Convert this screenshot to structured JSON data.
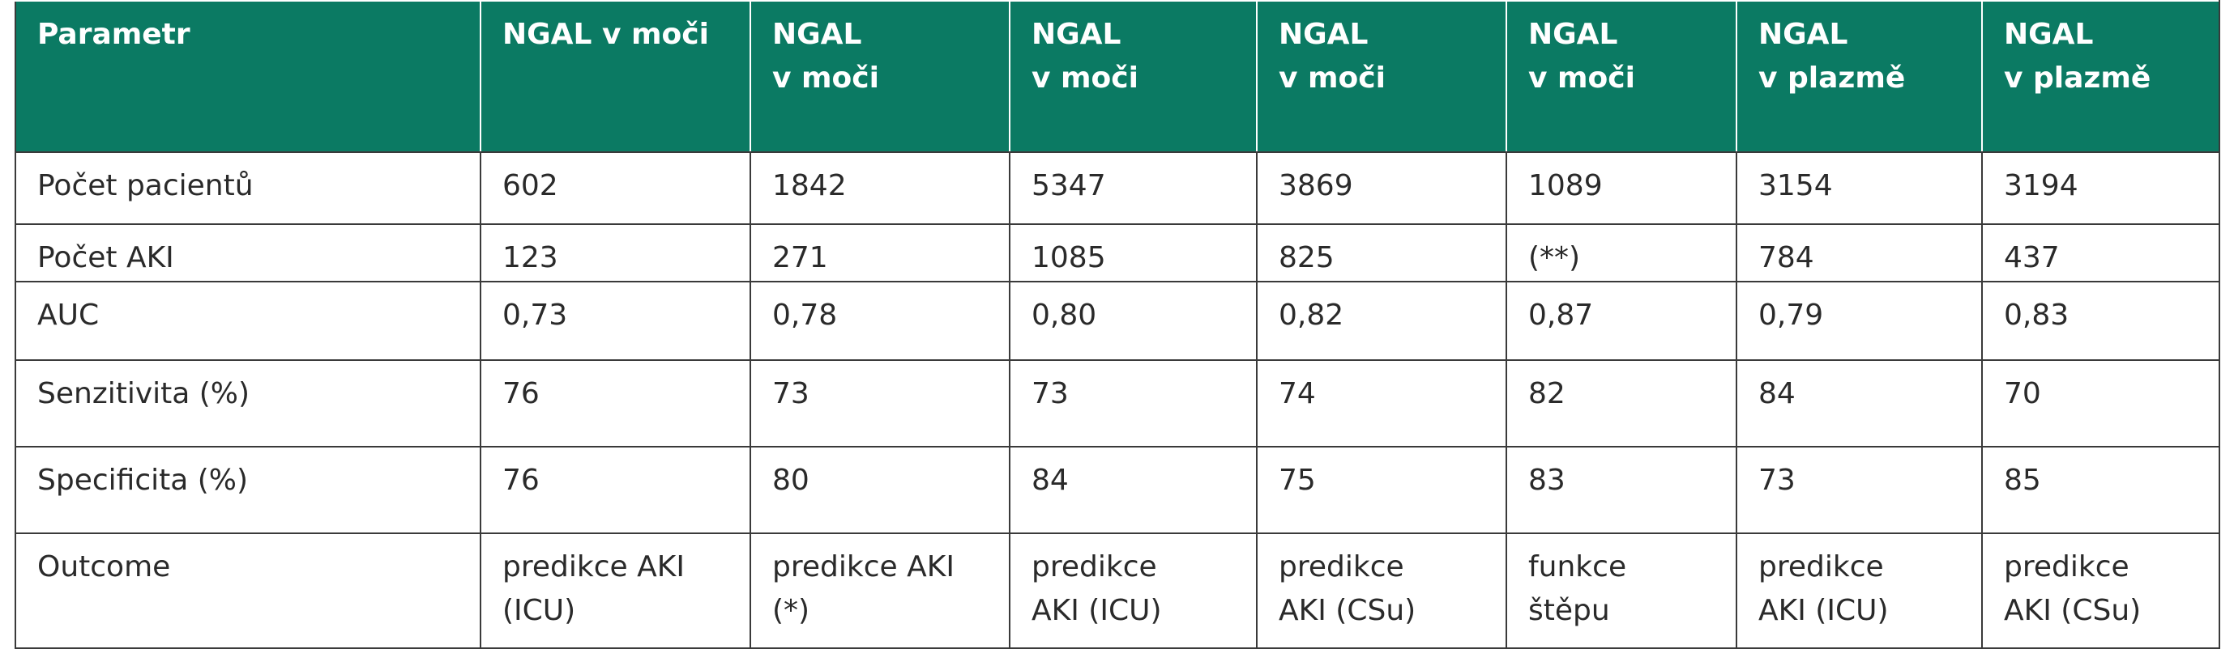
{
  "table": {
    "header": [
      [
        "Parametr"
      ],
      [
        "NGAL v moči"
      ],
      [
        "NGAL",
        "v moči"
      ],
      [
        "NGAL",
        "v moči"
      ],
      [
        "NGAL",
        "v moči"
      ],
      [
        "NGAL",
        "v moči"
      ],
      [
        "NGAL",
        "v plazmě"
      ],
      [
        "NGAL",
        "v plazmě"
      ]
    ],
    "rows": [
      [
        [
          "Počet pacientů"
        ],
        [
          "602"
        ],
        [
          "1842"
        ],
        [
          "5347"
        ],
        [
          "3869"
        ],
        [
          "1089"
        ],
        [
          "3154"
        ],
        [
          "3194"
        ]
      ],
      [
        [
          "Počet AKI"
        ],
        [
          "123"
        ],
        [
          "271"
        ],
        [
          "1085"
        ],
        [
          "825"
        ],
        [
          "(**)"
        ],
        [
          "784"
        ],
        [
          "437"
        ]
      ],
      [
        [
          "AUC"
        ],
        [
          "0,73"
        ],
        [
          "0,78"
        ],
        [
          "0,80"
        ],
        [
          "0,82"
        ],
        [
          "0,87"
        ],
        [
          "0,79"
        ],
        [
          "0,83"
        ]
      ],
      [
        [
          "Senzitivita (%)"
        ],
        [
          "76"
        ],
        [
          "73"
        ],
        [
          "73"
        ],
        [
          "74"
        ],
        [
          "82"
        ],
        [
          "84"
        ],
        [
          "70"
        ]
      ],
      [
        [
          "Specificita (%)"
        ],
        [
          "76"
        ],
        [
          "80"
        ],
        [
          "84"
        ],
        [
          "75"
        ],
        [
          "83"
        ],
        [
          "73"
        ],
        [
          "85"
        ]
      ],
      [
        [
          "Outcome"
        ],
        [
          "predikce AKI",
          "(ICU)"
        ],
        [
          "predikce AKI",
          "(*)"
        ],
        [
          "predikce",
          "AKI (ICU)"
        ],
        [
          "predikce",
          "AKI (CSu)"
        ],
        [
          "funkce",
          "štěpu"
        ],
        [
          "predikce",
          "AKI (ICU)"
        ],
        [
          "predikce",
          "AKI (CSu)"
        ]
      ]
    ]
  }
}
